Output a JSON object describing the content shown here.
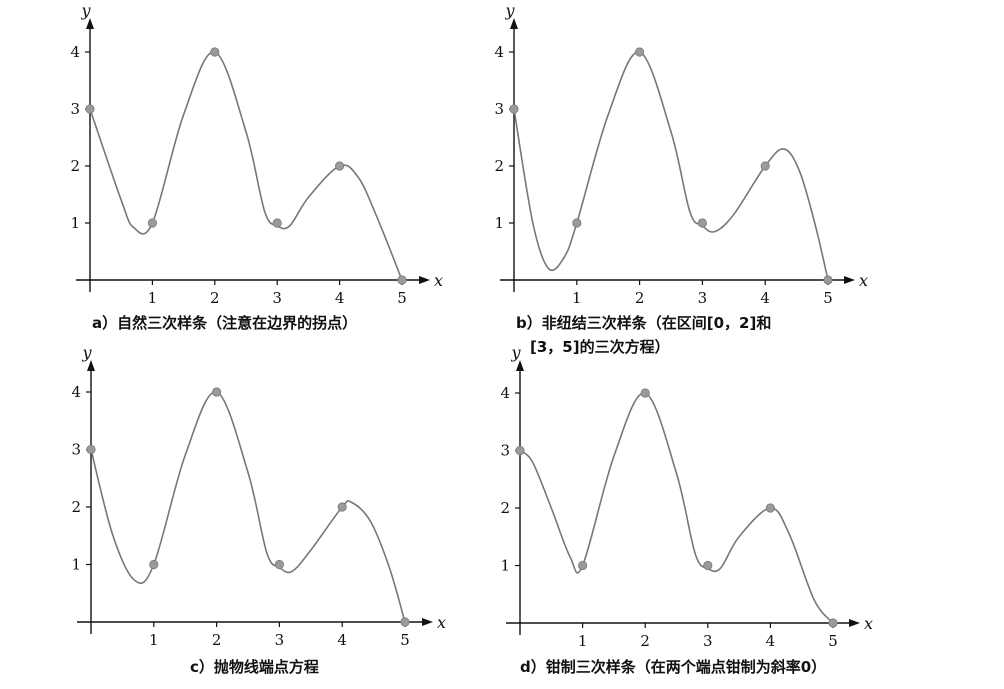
{
  "chart_data": [
    {
      "type": "line",
      "caption": "a）自然三次样条（注意在边界的拐点）",
      "xlabel": "x",
      "ylabel": "y",
      "xticks": [
        "1",
        "2",
        "3",
        "4",
        "5"
      ],
      "yticks": [
        "1",
        "2",
        "3",
        "4"
      ],
      "points": [
        [
          0,
          3
        ],
        [
          1,
          1
        ],
        [
          2,
          4
        ],
        [
          3,
          1
        ],
        [
          4,
          2
        ],
        [
          5,
          0
        ]
      ],
      "curve": [
        [
          0,
          3
        ],
        [
          0.5,
          1.4
        ],
        [
          0.7,
          0.92
        ],
        [
          1,
          1
        ],
        [
          1.5,
          2.9
        ],
        [
          2,
          4
        ],
        [
          2.5,
          2.6
        ],
        [
          2.8,
          1.2
        ],
        [
          3,
          0.95
        ],
        [
          3.2,
          0.95
        ],
        [
          3.5,
          1.45
        ],
        [
          4,
          2
        ],
        [
          4.3,
          1.8
        ],
        [
          4.6,
          1.1
        ],
        [
          5,
          0
        ]
      ]
    },
    {
      "type": "line",
      "caption_lines": [
        "b）非纽结三次样条（在区间[0，2]和",
        "[3，5]的三次方程）"
      ],
      "xlabel": "x",
      "ylabel": "y",
      "xticks": [
        "1",
        "2",
        "3",
        "4",
        "5"
      ],
      "yticks": [
        "1",
        "2",
        "3",
        "4"
      ],
      "points": [
        [
          0,
          3
        ],
        [
          1,
          1
        ],
        [
          2,
          4
        ],
        [
          3,
          1
        ],
        [
          4,
          2
        ],
        [
          5,
          0
        ]
      ],
      "curve": [
        [
          0,
          3
        ],
        [
          0.3,
          1.0
        ],
        [
          0.55,
          0.2
        ],
        [
          0.8,
          0.4
        ],
        [
          1,
          1
        ],
        [
          1.5,
          2.9
        ],
        [
          2,
          4
        ],
        [
          2.5,
          2.6
        ],
        [
          2.8,
          1.2
        ],
        [
          3,
          0.95
        ],
        [
          3.2,
          0.85
        ],
        [
          3.5,
          1.15
        ],
        [
          4,
          2
        ],
        [
          4.3,
          2.3
        ],
        [
          4.55,
          1.9
        ],
        [
          4.8,
          0.95
        ],
        [
          5,
          0
        ]
      ]
    },
    {
      "type": "line",
      "caption": "c）抛物线端点方程",
      "xlabel": "x",
      "ylabel": "y",
      "xticks": [
        "1",
        "2",
        "3",
        "4",
        "5"
      ],
      "yticks": [
        "1",
        "2",
        "3",
        "4"
      ],
      "points": [
        [
          0,
          3
        ],
        [
          1,
          1
        ],
        [
          2,
          4
        ],
        [
          3,
          1
        ],
        [
          4,
          2
        ],
        [
          5,
          0
        ]
      ],
      "curve": [
        [
          0,
          3
        ],
        [
          0.35,
          1.5
        ],
        [
          0.7,
          0.72
        ],
        [
          1,
          1
        ],
        [
          1.5,
          2.9
        ],
        [
          2,
          4
        ],
        [
          2.5,
          2.6
        ],
        [
          2.8,
          1.2
        ],
        [
          3,
          0.95
        ],
        [
          3.2,
          0.88
        ],
        [
          3.5,
          1.25
        ],
        [
          4,
          2
        ],
        [
          4.15,
          2.08
        ],
        [
          4.45,
          1.75
        ],
        [
          4.75,
          0.95
        ],
        [
          5,
          0
        ]
      ]
    },
    {
      "type": "line",
      "caption": "d）钳制三次样条（在两个端点钳制为斜率0）",
      "xlabel": "x",
      "ylabel": "y",
      "xticks": [
        "1",
        "2",
        "3",
        "4",
        "5"
      ],
      "yticks": [
        "1",
        "2",
        "3",
        "4"
      ],
      "points": [
        [
          0,
          3
        ],
        [
          1,
          1
        ],
        [
          2,
          4
        ],
        [
          3,
          1
        ],
        [
          4,
          2
        ],
        [
          5,
          0
        ]
      ],
      "curve": [
        [
          0,
          3
        ],
        [
          0.2,
          2.8
        ],
        [
          0.5,
          2.0
        ],
        [
          0.8,
          1.15
        ],
        [
          1,
          1
        ],
        [
          1.5,
          2.9
        ],
        [
          2,
          4
        ],
        [
          2.5,
          2.6
        ],
        [
          2.8,
          1.2
        ],
        [
          3,
          0.95
        ],
        [
          3.2,
          0.95
        ],
        [
          3.5,
          1.5
        ],
        [
          4,
          2
        ],
        [
          4.3,
          1.55
        ],
        [
          4.7,
          0.4
        ],
        [
          5,
          0
        ]
      ]
    }
  ]
}
